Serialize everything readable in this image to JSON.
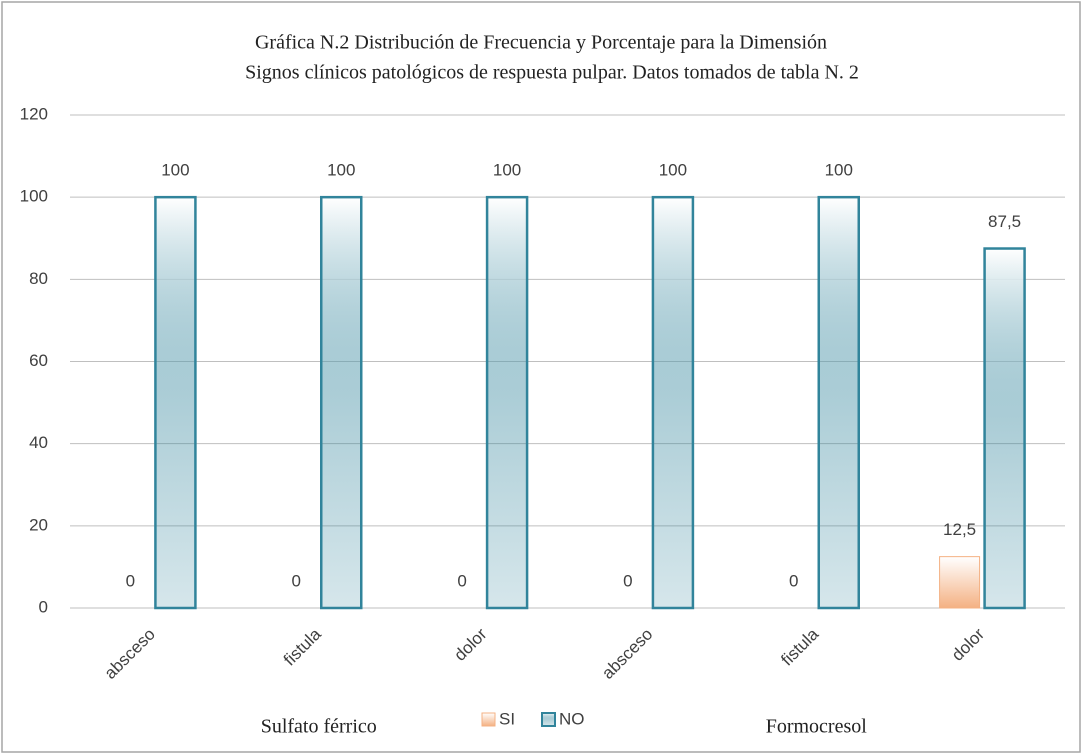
{
  "chart_data": {
    "type": "bar",
    "title": [
      "Gráfica N.2 Distribución de Frecuencia y Porcentaje para la Dimensión",
      "Signos clínicos patológicos de respuesta pulpar.  Datos tomados de tabla N. 2"
    ],
    "categories": [
      "absceso",
      "fistula",
      "dolor",
      "absceso",
      "fistula",
      "dolor"
    ],
    "groups": [
      "Sulfato férrico",
      "Formocresol"
    ],
    "series": [
      {
        "name": "SI",
        "color": "#f4b183",
        "values": [
          0,
          0,
          0,
          0,
          0,
          12.5
        ],
        "value_labels": [
          "0",
          "0",
          "0",
          "0",
          "0",
          "12,5"
        ]
      },
      {
        "name": "NO",
        "color": "#31849b",
        "values": [
          100,
          100,
          100,
          100,
          100,
          87.5
        ],
        "value_labels": [
          "100",
          "100",
          "100",
          "100",
          "100",
          "87,5"
        ]
      }
    ],
    "ylim": [
      0,
      120
    ],
    "yticks": [
      0,
      20,
      40,
      60,
      80,
      100,
      120
    ],
    "grid": true,
    "legend": "bottom"
  }
}
